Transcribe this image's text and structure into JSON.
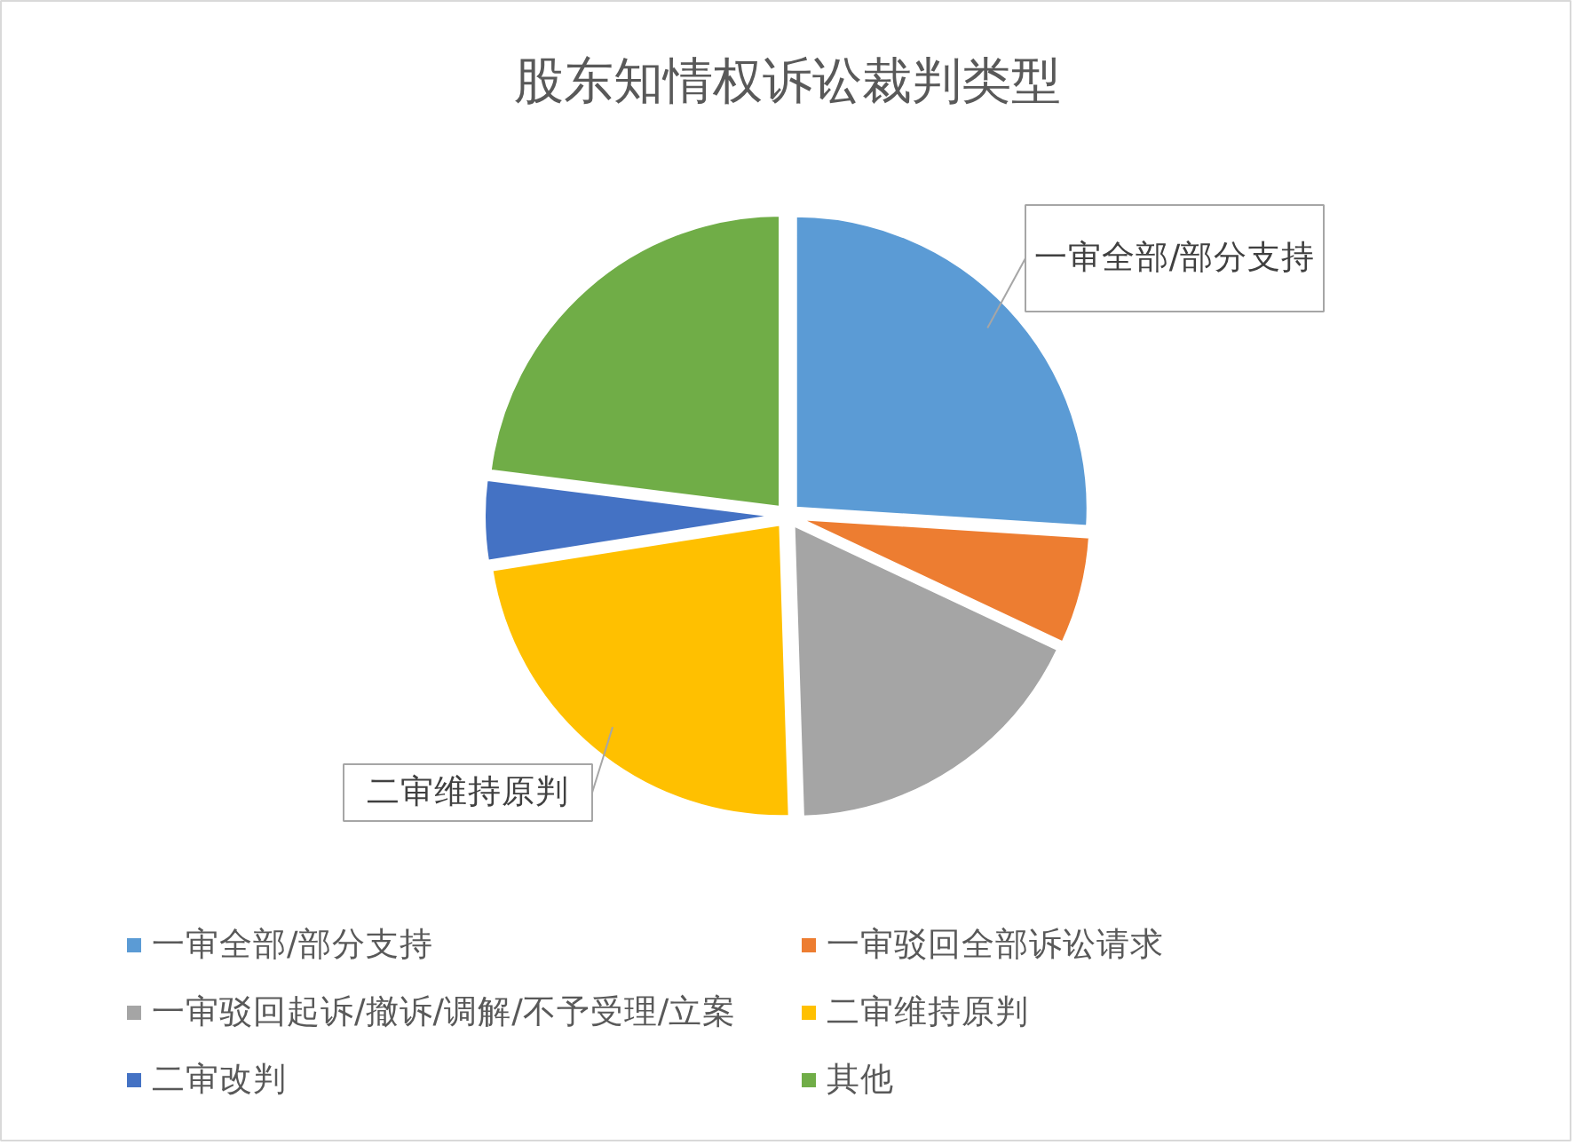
{
  "chart_data": {
    "type": "pie",
    "title": "股东知情权诉讼裁判类型",
    "categories": [
      "一审全部/部分支持",
      "一审驳回全部诉讼请求",
      "一审驳回起诉/撤诉/调解/不予受理/立案",
      "二审维持原判",
      "二审改判",
      "其他"
    ],
    "values": [
      26,
      6,
      17.5,
      23,
      4.5,
      23
    ],
    "colors": [
      "#5b9bd5",
      "#ed7d31",
      "#a5a5a5",
      "#ffc000",
      "#4472c4",
      "#70ad47"
    ],
    "annotations": [
      "一审全部/部分支持",
      "二审维持原判"
    ],
    "legend": "bottom"
  }
}
